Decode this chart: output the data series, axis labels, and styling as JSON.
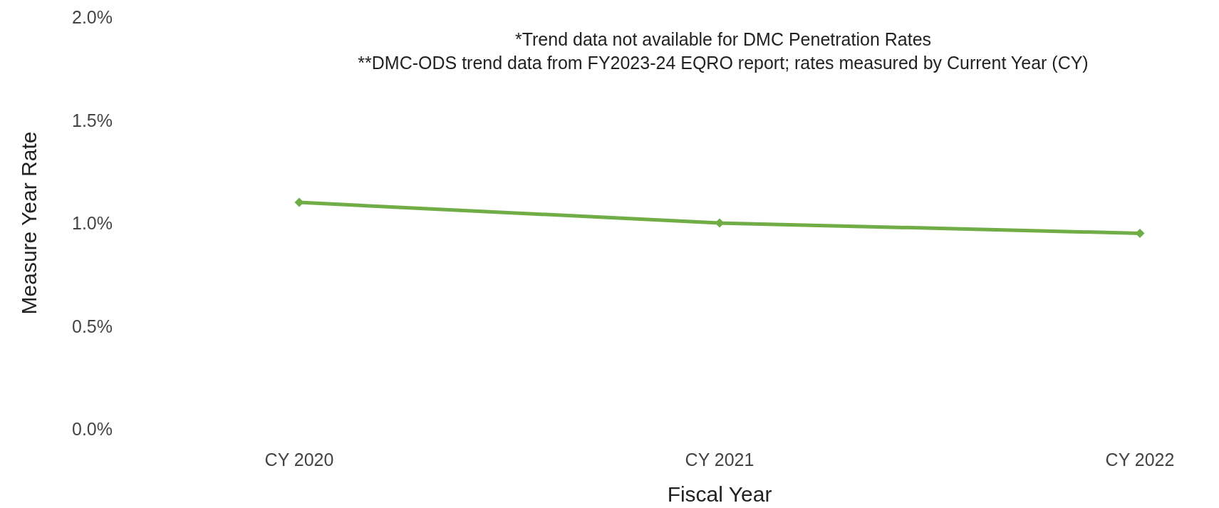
{
  "chart_data": {
    "type": "line",
    "xlabel": "Fiscal Year",
    "ylabel": "Measure Year Rate",
    "annotations": [
      "*Trend data not available for DMC Penetration Rates",
      "**DMC-ODS trend data from FY2023-24 EQRO report; rates measured by Current Year (CY)"
    ],
    "categories": [
      "CY 2020",
      "CY 2021",
      "CY 2022"
    ],
    "series": [
      {
        "color": "#70ad47",
        "values": [
          1.1,
          1.0,
          0.95
        ]
      }
    ],
    "ylim": [
      0,
      2
    ],
    "yticks": [
      {
        "value": 0,
        "label": "0.0%"
      },
      {
        "value": 0.5,
        "label": "0.5%"
      },
      {
        "value": 1,
        "label": "1.0%"
      },
      {
        "value": 1.5,
        "label": "1.5%"
      },
      {
        "value": 2,
        "label": "2.0%"
      }
    ],
    "grid": false,
    "marker": "diamond",
    "line_style": "solid"
  }
}
